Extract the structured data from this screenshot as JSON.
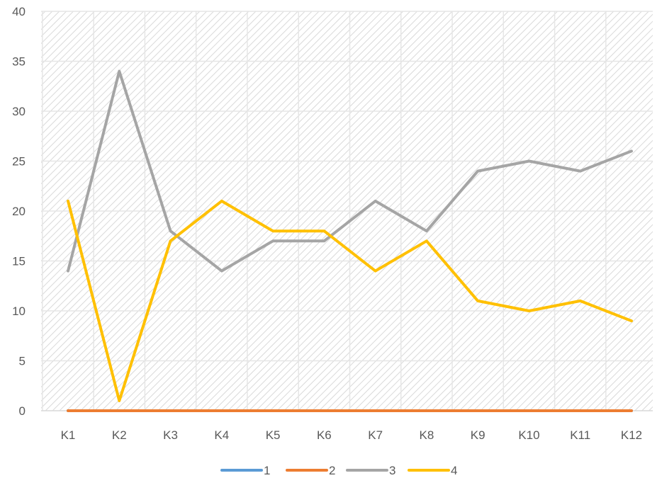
{
  "chart_data": {
    "type": "line",
    "categories": [
      "K1",
      "K2",
      "K3",
      "K4",
      "K5",
      "K6",
      "K7",
      "K8",
      "K9",
      "K10",
      "K11",
      "K12"
    ],
    "series": [
      {
        "name": "1",
        "color": "#5B9BD5",
        "values": [
          0,
          0,
          0,
          0,
          0,
          0,
          0,
          0,
          0,
          0,
          0,
          0
        ]
      },
      {
        "name": "2",
        "color": "#ED7D31",
        "values": [
          0,
          0,
          0,
          0,
          0,
          0,
          0,
          0,
          0,
          0,
          0,
          0
        ]
      },
      {
        "name": "3",
        "color": "#A5A5A5",
        "values": [
          14,
          34,
          18,
          14,
          17,
          17,
          21,
          18,
          24,
          25,
          24,
          26
        ]
      },
      {
        "name": "4",
        "color": "#FFC000",
        "values": [
          21,
          1,
          17,
          21,
          18,
          18,
          14,
          17,
          11,
          10,
          11,
          9
        ]
      }
    ],
    "ylim": [
      0,
      40
    ],
    "yticks": [
      0,
      5,
      10,
      15,
      20,
      25,
      30,
      35,
      40
    ],
    "grid": true,
    "legend_position": "bottom",
    "background_pattern": "diagonal-hatch"
  }
}
